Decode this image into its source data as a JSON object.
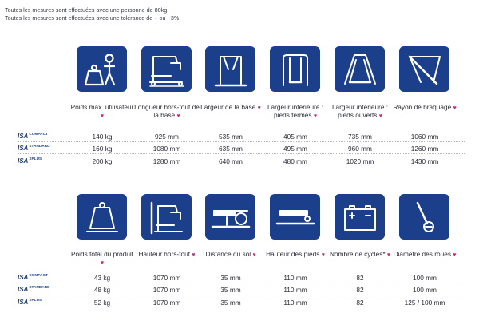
{
  "notes": [
    "Toutes les mesures sont effectuées avec une personne de 80kg.",
    "Toutes les mesures sont effectuées avec une tolérance de + ou - 3%."
  ],
  "heart": "♥",
  "top": {
    "columns": [
      {
        "label": "Poids max. utilisateur",
        "icon": "person-weight-icon"
      },
      {
        "label": "Longueur hors-tout de la base",
        "icon": "lift-length-icon"
      },
      {
        "label": "Largeur de la base",
        "icon": "base-width-icon"
      },
      {
        "label": "Largeur intérieure : pieds fermés",
        "icon": "legs-closed-icon"
      },
      {
        "label": "Largeur intérieure : pieds ouverts",
        "icon": "legs-open-icon"
      },
      {
        "label": "Rayon de braquage",
        "icon": "turning-radius-icon"
      }
    ],
    "rows": [
      {
        "model": "ISA",
        "variant": "COMPACT",
        "values": [
          "140 kg",
          "925 mm",
          "535 mm",
          "405 mm",
          "735 mm",
          "1060 mm"
        ]
      },
      {
        "model": "ISA",
        "variant": "STANDARD",
        "values": [
          "160 kg",
          "1080 mm",
          "635 mm",
          "495 mm",
          "960 mm",
          "1260 mm"
        ]
      },
      {
        "model": "ISA",
        "variant": "XPLUS",
        "values": [
          "200 kg",
          "1280 mm",
          "640 mm",
          "480 mm",
          "1020 mm",
          "1430 mm"
        ]
      }
    ]
  },
  "bottom": {
    "columns": [
      {
        "label": "Poids total du produit",
        "icon": "scale-weight-icon"
      },
      {
        "label": "Hauteur hors-tout",
        "icon": "total-height-icon"
      },
      {
        "label": "Distance du sol",
        "icon": "ground-clearance-icon"
      },
      {
        "label": "Hauteur des pieds",
        "icon": "leg-height-icon"
      },
      {
        "label": "Nombre de cycles*",
        "icon": "battery-icon"
      },
      {
        "label": "Diamètre des roues",
        "icon": "wheel-diameter-icon"
      }
    ],
    "rows": [
      {
        "model": "ISA",
        "variant": "COMPACT",
        "values": [
          "43 kg",
          "1070 mm",
          "35 mm",
          "110 mm",
          "82",
          "100 mm"
        ]
      },
      {
        "model": "ISA",
        "variant": "STANDARD",
        "values": [
          "48 kg",
          "1070 mm",
          "35 mm",
          "110 mm",
          "82",
          "100 mm"
        ]
      },
      {
        "model": "ISA",
        "variant": "XPLUS",
        "values": [
          "52 kg",
          "1070 mm",
          "35 mm",
          "110 mm",
          "82",
          "125 / 100 mm"
        ]
      }
    ]
  },
  "colors": {
    "icon_bg": "#1b3f8a",
    "heart": "#d4207b",
    "model": "#1b3f8a"
  }
}
